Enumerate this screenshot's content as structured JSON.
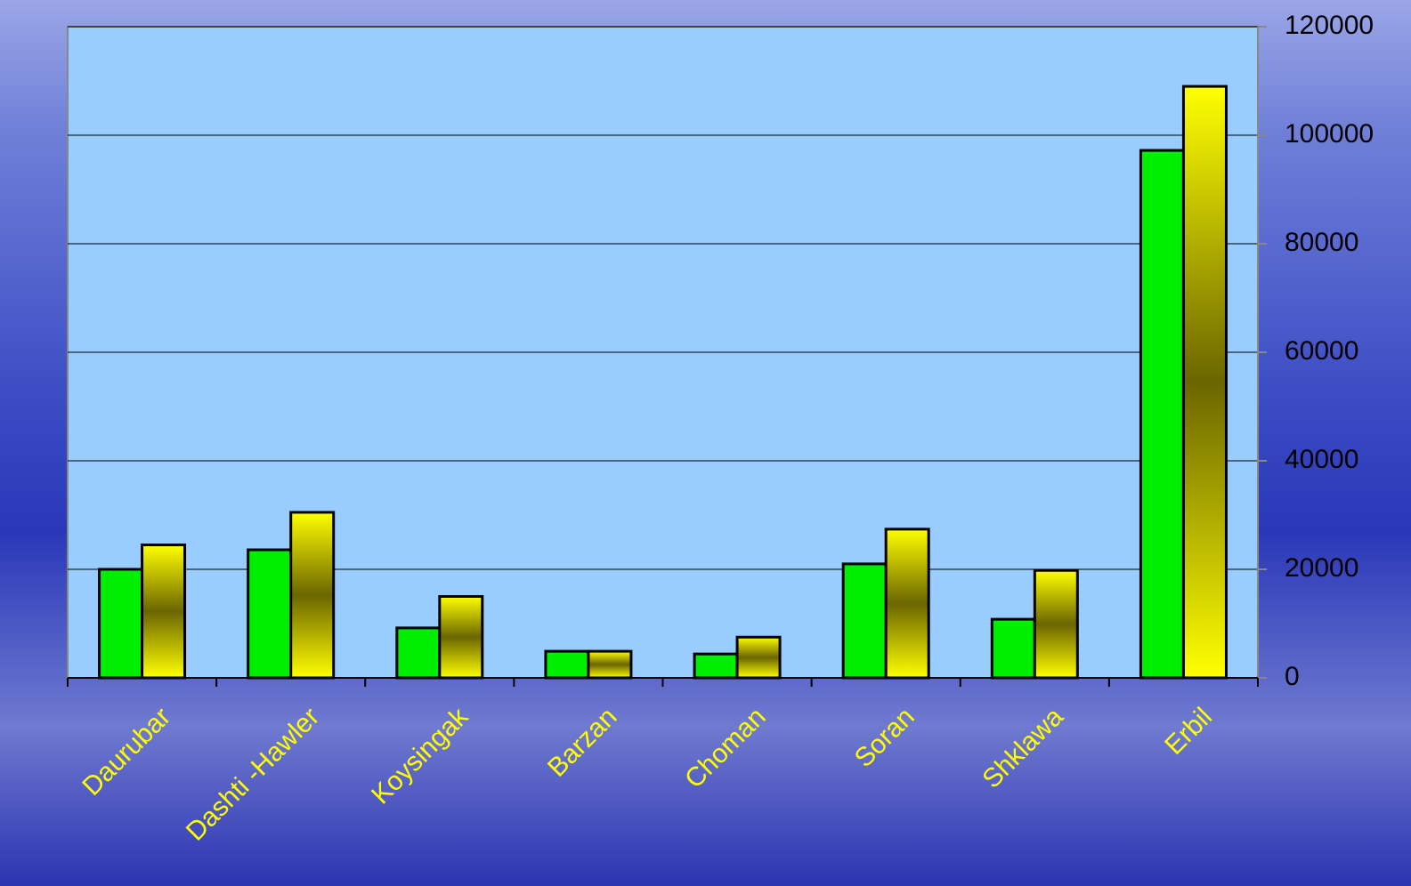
{
  "chart_data": {
    "type": "bar",
    "categories": [
      "Daurubar",
      "Dashti -Hawler",
      "Koysingak",
      "Barzan",
      "Choman",
      "Soran",
      "Shklawa",
      "Erbil"
    ],
    "series": [
      {
        "color": "#00ee00",
        "values": [
          20000,
          23600,
          9200,
          4900,
          4400,
          21000,
          10800,
          97200
        ]
      },
      {
        "color": "#ffff00",
        "values": [
          24500,
          30500,
          15000,
          4900,
          7500,
          27400,
          19800,
          109000
        ]
      }
    ],
    "ylim": [
      0,
      120000
    ],
    "yticks": [
      0,
      20000,
      40000,
      60000,
      80000,
      100000,
      120000
    ],
    "grid": true,
    "yaxis_side": "right",
    "plot_background": "#99ccff",
    "category_label_color": "#ffff00"
  }
}
